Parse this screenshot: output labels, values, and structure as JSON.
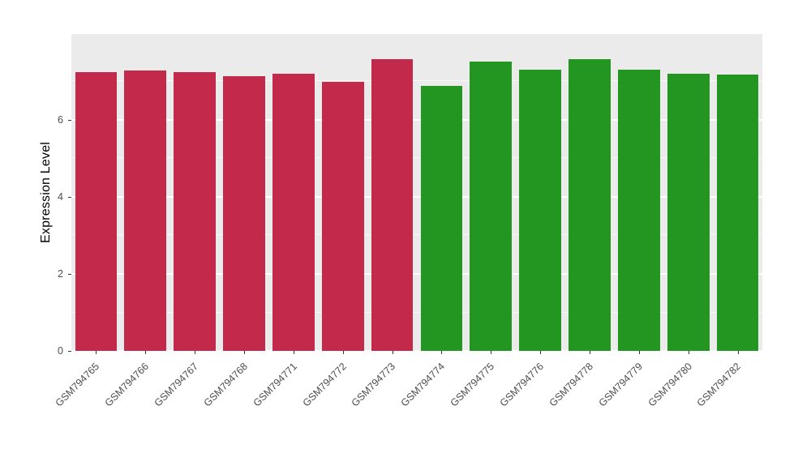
{
  "figure": {
    "background": "#FFFFFF",
    "panel_background": "#EBEBEB",
    "gridline_color": "#FFFFFF",
    "axis_text_color": "#4D4D4D",
    "axis_title_color": "#000000"
  },
  "chart_data": {
    "type": "bar",
    "title": "",
    "xlabel": "",
    "ylabel": "Expression Level",
    "legend": "none",
    "grid": true,
    "categories": [
      "GSM794765",
      "GSM794766",
      "GSM794767",
      "GSM794768",
      "GSM794771",
      "GSM794772",
      "GSM794773",
      "GSM794774",
      "GSM794775",
      "GSM794776",
      "GSM794778",
      "GSM794779",
      "GSM794780",
      "GSM794782"
    ],
    "values": [
      7.24,
      7.28,
      7.24,
      7.14,
      7.2,
      6.98,
      7.58,
      6.88,
      7.52,
      7.3,
      7.57,
      7.31,
      7.2,
      7.17
    ],
    "bar_colors": [
      "#C3294B",
      "#C3294B",
      "#C3294B",
      "#C3294B",
      "#C3294B",
      "#C3294B",
      "#C3294B",
      "#229621",
      "#229621",
      "#229621",
      "#229621",
      "#229621",
      "#229621",
      "#229621"
    ],
    "group_colors": {
      "group1": "#C3294B",
      "group2": "#229621"
    },
    "yticks": [
      0,
      2,
      4,
      6
    ],
    "minor_gridlines": [
      1,
      3,
      5,
      7
    ],
    "ylim": [
      0,
      8.23
    ],
    "bar_width_fraction": 0.85
  }
}
